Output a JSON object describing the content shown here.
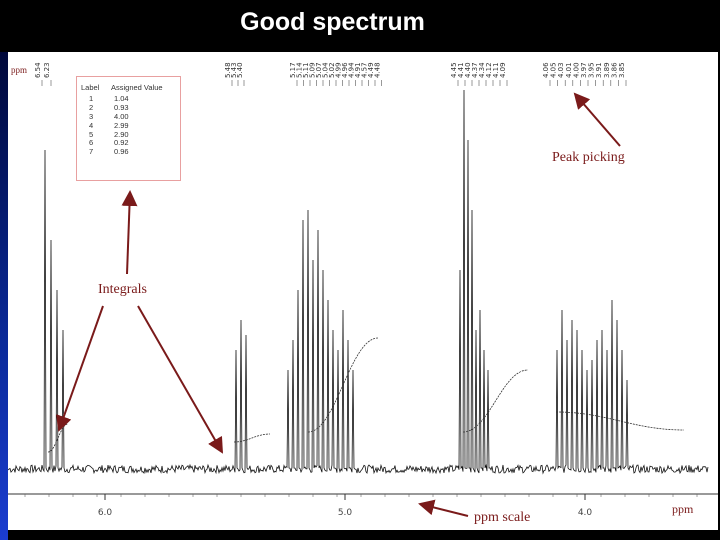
{
  "slide_title": "Good spectrum",
  "spectrum": {
    "y_unit_label": "ppm",
    "x_unit_label": "ppm",
    "x_ticks": [
      "6.0",
      "5.0",
      "4.0"
    ],
    "peak_labels": [
      "6.54",
      "6.23",
      "5.48",
      "5.43",
      "5.40",
      "5.17",
      "5.14",
      "5.11",
      "5.09",
      "5.07",
      "5.04",
      "5.02",
      "4.99",
      "4.96",
      "4.94",
      "4.91",
      "4.57",
      "4.49",
      "4.48",
      "4.45",
      "4.41",
      "4.40",
      "4.37",
      "4.34",
      "4.12",
      "4.11",
      "4.09",
      "4.06",
      "4.05",
      "4.03",
      "4.01",
      "4.00",
      "3.97",
      "3.95",
      "3.91",
      "3.89",
      "3.86",
      "3.85"
    ]
  },
  "integral_table": {
    "headers": [
      "Label",
      "Assigned Value"
    ],
    "rows": [
      {
        "label": "1",
        "value": "1.04"
      },
      {
        "label": "2",
        "value": "0.93"
      },
      {
        "label": "3",
        "value": "4.00"
      },
      {
        "label": "4",
        "value": "2.99"
      },
      {
        "label": "5",
        "value": "2.90"
      },
      {
        "label": "6",
        "value": "0.92"
      },
      {
        "label": "7",
        "value": "0.96"
      }
    ]
  },
  "annotations": {
    "peak_picking": "Peak picking",
    "integrals": "Integrals",
    "ppm_scale": "ppm scale"
  },
  "colors": {
    "annotation_text": "#7a1a1a",
    "arrow": "#7a1a1a",
    "background": "#000000",
    "panel": "#ffffff",
    "left_bar": "#1b3dd0"
  }
}
